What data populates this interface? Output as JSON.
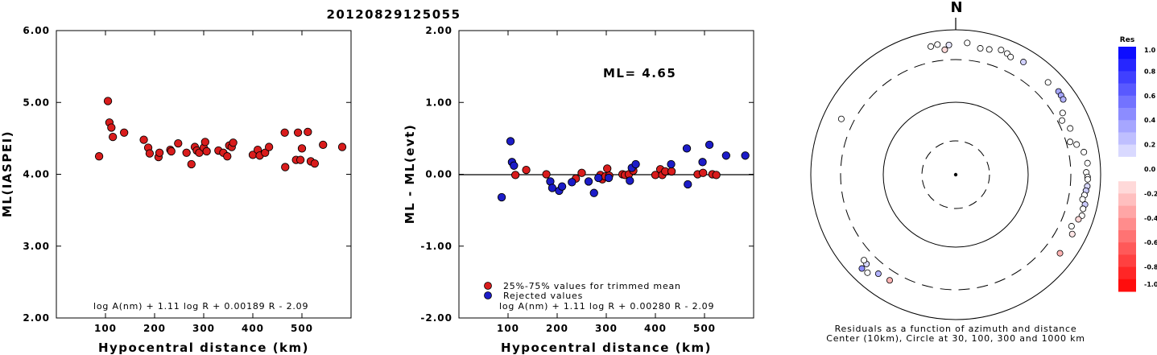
{
  "title": "20120829125055",
  "chart_data": [
    {
      "type": "scatter",
      "xlabel": "Hypocentral distance (km)",
      "ylabel": "ML(IASPEI)",
      "xlim": [
        0,
        600
      ],
      "ylim": [
        2.0,
        6.0
      ],
      "xticks": [
        "100",
        "200",
        "300",
        "400",
        "500"
      ],
      "yticks": [
        "2.00",
        "3.00",
        "4.00",
        "5.00",
        "6.00"
      ],
      "formula": "log A(nm) + 1.11 log R + 0.00189 R - 2.09",
      "series": [
        {
          "color": "#d91c1c",
          "points": [
            [
              87,
              4.25
            ],
            [
              105,
              5.02
            ],
            [
              108,
              4.72
            ],
            [
              112,
              4.65
            ],
            [
              115,
              4.52
            ],
            [
              138,
              4.58
            ],
            [
              178,
              4.48
            ],
            [
              187,
              4.37
            ],
            [
              190,
              4.29
            ],
            [
              208,
              4.24
            ],
            [
              210,
              4.3
            ],
            [
              232,
              4.34
            ],
            [
              234,
              4.32
            ],
            [
              248,
              4.43
            ],
            [
              265,
              4.3
            ],
            [
              275,
              4.14
            ],
            [
              282,
              4.38
            ],
            [
              286,
              4.33
            ],
            [
              291,
              4.3
            ],
            [
              300,
              4.37
            ],
            [
              303,
              4.45
            ],
            [
              306,
              4.32
            ],
            [
              330,
              4.33
            ],
            [
              340,
              4.3
            ],
            [
              348,
              4.25
            ],
            [
              352,
              4.4
            ],
            [
              357,
              4.38
            ],
            [
              360,
              4.44
            ],
            [
              400,
              4.27
            ],
            [
              410,
              4.34
            ],
            [
              414,
              4.26
            ],
            [
              425,
              4.3
            ],
            [
              433,
              4.38
            ],
            [
              465,
              4.58
            ],
            [
              466,
              4.1
            ],
            [
              488,
              4.2
            ],
            [
              492,
              4.58
            ],
            [
              497,
              4.2
            ],
            [
              500,
              4.36
            ],
            [
              512,
              4.59
            ],
            [
              518,
              4.18
            ],
            [
              526,
              4.15
            ],
            [
              543,
              4.41
            ],
            [
              582,
              4.38
            ]
          ]
        }
      ]
    },
    {
      "type": "scatter",
      "xlabel": "Hypocentral distance (km)",
      "ylabel": "ML - ML(evt)",
      "xlim": [
        0,
        600
      ],
      "ylim": [
        -2.0,
        2.0
      ],
      "xticks": [
        "100",
        "200",
        "300",
        "400",
        "500"
      ],
      "yticks": [
        "-2.00",
        "-1.00",
        "0.00",
        "1.00",
        "2.00"
      ],
      "annotation": "ML= 4.65",
      "formula": "log A(nm) + 1.11 log R + 0.00280 R - 2.09",
      "legend": {
        "position": "bottom-left",
        "entries": [
          {
            "label": "25%-75% values for trimmed mean",
            "color": "#d91c1c"
          },
          {
            "label": "Rejected values",
            "color": "#1c1cc8"
          }
        ]
      },
      "series": [
        {
          "name": "25%-75% values for trimmed mean",
          "color": "#d91c1c",
          "points": [
            [
              115,
              -0.01
            ],
            [
              137,
              0.06
            ],
            [
              178,
              0.0
            ],
            [
              238,
              -0.06
            ],
            [
              250,
              0.02
            ],
            [
              288,
              -0.01
            ],
            [
              292,
              -0.07
            ],
            [
              298,
              -0.03
            ],
            [
              302,
              0.08
            ],
            [
              306,
              -0.02
            ],
            [
              333,
              0.0
            ],
            [
              338,
              -0.01
            ],
            [
              346,
              0.0
            ],
            [
              355,
              0.05
            ],
            [
              400,
              -0.01
            ],
            [
              410,
              0.07
            ],
            [
              414,
              -0.01
            ],
            [
              420,
              0.04
            ],
            [
              433,
              0.04
            ],
            [
              486,
              0.0
            ],
            [
              497,
              0.02
            ],
            [
              516,
              0.0
            ],
            [
              524,
              -0.01
            ]
          ]
        },
        {
          "name": "Rejected values",
          "color": "#1c1cc8",
          "points": [
            [
              87,
              -0.32
            ],
            [
              105,
              0.46
            ],
            [
              108,
              0.17
            ],
            [
              112,
              0.12
            ],
            [
              186,
              -0.1
            ],
            [
              190,
              -0.19
            ],
            [
              204,
              -0.23
            ],
            [
              210,
              -0.17
            ],
            [
              230,
              -0.11
            ],
            [
              264,
              -0.1
            ],
            [
              275,
              -0.26
            ],
            [
              284,
              -0.05
            ],
            [
              305,
              -0.05
            ],
            [
              348,
              -0.09
            ],
            [
              352,
              0.09
            ],
            [
              360,
              0.14
            ],
            [
              432,
              0.14
            ],
            [
              464,
              0.36
            ],
            [
              466,
              -0.14
            ],
            [
              496,
              0.17
            ],
            [
              510,
              0.41
            ],
            [
              544,
              0.26
            ],
            [
              583,
              0.26
            ]
          ]
        }
      ]
    },
    {
      "type": "scatter",
      "title": "N",
      "caption": [
        "Residuals as a function of azimuth and distance",
        "Center (10km), Circle at 30, 100, 300 and 1000 km"
      ],
      "colorbar": {
        "title": "Res",
        "range": [
          -1.0,
          1.0
        ],
        "ticks": [
          "1.0",
          "0.8",
          "0.6",
          "0.4",
          "0.2",
          "0.0",
          "-0.2",
          "-0.4",
          "-0.6",
          "-0.8",
          "-1.0"
        ]
      },
      "note": "points are [azimuth_deg, distance_km, residual]",
      "points": [
        [
          349,
          560,
          0.0
        ],
        [
          352,
          580,
          0.05
        ],
        [
          355,
          455,
          -0.15
        ],
        [
          357,
          545,
          0.1
        ],
        [
          5,
          600,
          0.0
        ],
        [
          11,
          520,
          0.0
        ],
        [
          15,
          540,
          0.02
        ],
        [
          20,
          610,
          0.0
        ],
        [
          23,
          585,
          0.02
        ],
        [
          25,
          545,
          0.0
        ],
        [
          31,
          580,
          0.18
        ],
        [
          45,
          560,
          0.0
        ],
        [
          51,
          600,
          0.35
        ],
        [
          53,
          590,
          0.35
        ],
        [
          55,
          575,
          0.3
        ],
        [
          60,
          420,
          0.05
        ],
        [
          63,
          355,
          0.0
        ],
        [
          68,
          420,
          0.0
        ],
        [
          74,
          350,
          0.0
        ],
        [
          76,
          440,
          0.0
        ],
        [
          80,
          550,
          0.0
        ],
        [
          85,
          600,
          0.0
        ],
        [
          89,
          560,
          0.0
        ],
        [
          91,
          590,
          0.0
        ],
        [
          92,
          595,
          0.0
        ],
        [
          95,
          595,
          0.15
        ],
        [
          97,
          575,
          0.2
        ],
        [
          99,
          555,
          0.0
        ],
        [
          101,
          530,
          0.0
        ],
        [
          103,
          610,
          0.2
        ],
        [
          105,
          590,
          0.0
        ],
        [
          108,
          610,
          0.0
        ],
        [
          110,
          560,
          -0.15
        ],
        [
          114,
          480,
          0.0
        ],
        [
          117,
          565,
          -0.1
        ],
        [
          127,
          560,
          -0.3
        ],
        [
          212,
          440,
          -0.3
        ],
        [
          218,
          460,
          0.3
        ],
        [
          225,
          470,
          0.15
        ],
        [
          227,
          455,
          0.0
        ],
        [
          222,
          590,
          0.0
        ],
        [
          225,
          610,
          0.45
        ],
        [
          296,
          490,
          0.0
        ]
      ]
    }
  ]
}
